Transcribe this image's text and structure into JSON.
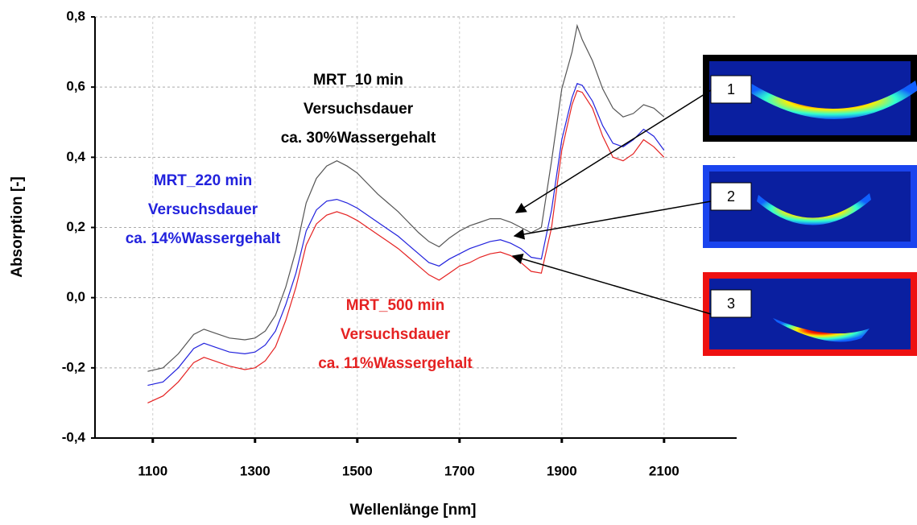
{
  "chart_data": {
    "type": "line",
    "xlabel": "Wellenlänge [nm]",
    "ylabel": "Absorption [-]",
    "xlim": [
      987,
      2242
    ],
    "ylim": [
      -0.4,
      0.8
    ],
    "xticks": [
      1100,
      1300,
      1500,
      1700,
      1900,
      2100
    ],
    "yticks": [
      {
        "value": -0.4,
        "label": "-0,4"
      },
      {
        "value": -0.2,
        "label": "-0,2"
      },
      {
        "value": 0,
        "label": "0,0"
      },
      {
        "value": 0.2,
        "label": "0,2"
      },
      {
        "value": 0.4,
        "label": "0,4"
      },
      {
        "value": 0.6,
        "label": "0,6"
      },
      {
        "value": 0.8,
        "label": "0,8"
      }
    ],
    "grid": true,
    "x": [
      1090,
      1120,
      1150,
      1180,
      1200,
      1220,
      1250,
      1280,
      1300,
      1320,
      1340,
      1360,
      1380,
      1400,
      1420,
      1440,
      1460,
      1480,
      1500,
      1520,
      1540,
      1560,
      1580,
      1600,
      1620,
      1640,
      1660,
      1680,
      1700,
      1720,
      1740,
      1760,
      1780,
      1800,
      1820,
      1840,
      1860,
      1880,
      1900,
      1920,
      1930,
      1940,
      1960,
      1980,
      2000,
      2020,
      2040,
      2060,
      2080,
      2100
    ],
    "series": [
      {
        "name": "MRT_10 min",
        "details": [
          "Versuchsdauer",
          "ca. 30%Wassergehalt"
        ],
        "color": "#555555",
        "values": [
          -0.21,
          -0.2,
          -0.16,
          -0.105,
          -0.09,
          -0.1,
          -0.115,
          -0.12,
          -0.115,
          -0.095,
          -0.05,
          0.03,
          0.135,
          0.27,
          0.34,
          0.375,
          0.39,
          0.375,
          0.355,
          0.325,
          0.295,
          0.27,
          0.245,
          0.215,
          0.185,
          0.16,
          0.145,
          0.17,
          0.19,
          0.205,
          0.215,
          0.225,
          0.225,
          0.215,
          0.2,
          0.185,
          0.2,
          0.39,
          0.595,
          0.7,
          0.775,
          0.735,
          0.675,
          0.595,
          0.54,
          0.515,
          0.525,
          0.55,
          0.54,
          0.515
        ]
      },
      {
        "name": "MRT_220 min",
        "details": [
          "Versuchsdauer",
          "ca. 14%Wassergehalt"
        ],
        "color": "#2222dd",
        "values": [
          -0.25,
          -0.24,
          -0.2,
          -0.145,
          -0.13,
          -0.14,
          -0.155,
          -0.16,
          -0.155,
          -0.135,
          -0.095,
          -0.02,
          0.07,
          0.19,
          0.25,
          0.275,
          0.28,
          0.27,
          0.255,
          0.235,
          0.215,
          0.195,
          0.175,
          0.15,
          0.125,
          0.1,
          0.09,
          0.11,
          0.125,
          0.14,
          0.15,
          0.16,
          0.165,
          0.155,
          0.14,
          0.115,
          0.11,
          0.25,
          0.45,
          0.57,
          0.61,
          0.605,
          0.56,
          0.49,
          0.44,
          0.43,
          0.45,
          0.48,
          0.46,
          0.42
        ]
      },
      {
        "name": "MRT_500 min",
        "details": [
          "Versuchsdauer",
          "ca. 11%Wassergehalt"
        ],
        "color": "#e52222",
        "values": [
          -0.3,
          -0.28,
          -0.24,
          -0.185,
          -0.17,
          -0.18,
          -0.195,
          -0.205,
          -0.2,
          -0.18,
          -0.14,
          -0.065,
          0.03,
          0.15,
          0.21,
          0.235,
          0.245,
          0.235,
          0.22,
          0.2,
          0.18,
          0.16,
          0.14,
          0.115,
          0.09,
          0.065,
          0.05,
          0.07,
          0.09,
          0.1,
          0.115,
          0.125,
          0.13,
          0.12,
          0.1,
          0.075,
          0.07,
          0.2,
          0.42,
          0.55,
          0.59,
          0.585,
          0.54,
          0.46,
          0.4,
          0.39,
          0.41,
          0.45,
          0.43,
          0.4
        ]
      }
    ],
    "insets": [
      {
        "label": "1",
        "border": "#000000"
      },
      {
        "label": "2",
        "border": "#1a44ee"
      },
      {
        "label": "3",
        "border": "#ee1111"
      }
    ]
  }
}
